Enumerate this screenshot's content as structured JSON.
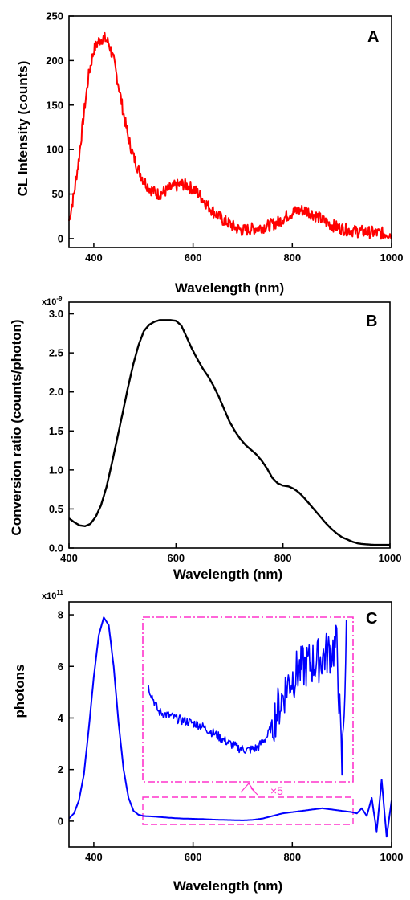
{
  "chart_data": [
    {
      "type": "line",
      "panel_label": "A",
      "xlabel": "Wavelength (nm)",
      "ylabel": "CL Intensity (counts)",
      "xlim": [
        350,
        1000
      ],
      "ylim": [
        -10,
        250
      ],
      "xticks": [
        400,
        600,
        800,
        1000
      ],
      "yticks": [
        0,
        50,
        100,
        150,
        200,
        250
      ],
      "series": [
        {
          "color": "#ff0000",
          "x": [
            350,
            360,
            370,
            380,
            390,
            400,
            410,
            420,
            430,
            440,
            450,
            460,
            470,
            480,
            490,
            500,
            510,
            520,
            530,
            540,
            550,
            560,
            570,
            580,
            590,
            600,
            610,
            620,
            630,
            640,
            650,
            660,
            670,
            680,
            690,
            700,
            710,
            720,
            730,
            740,
            750,
            760,
            770,
            780,
            790,
            800,
            810,
            820,
            830,
            840,
            850,
            860,
            870,
            880,
            890,
            900,
            910,
            920,
            930,
            940,
            950,
            960,
            970,
            980,
            990,
            1000
          ],
          "y": [
            20,
            50,
            90,
            140,
            185,
            212,
            222,
            226,
            220,
            200,
            172,
            140,
            112,
            92,
            78,
            66,
            58,
            53,
            50,
            52,
            55,
            58,
            60,
            61,
            59,
            56,
            51,
            44,
            37,
            31,
            26,
            21,
            18,
            14,
            11,
            9,
            10,
            11,
            12,
            13,
            14,
            16,
            18,
            22,
            26,
            29,
            31,
            32,
            31,
            28,
            25,
            21,
            18,
            15,
            13,
            11,
            10,
            9,
            8,
            8,
            7,
            7,
            6,
            6,
            6,
            5
          ]
        }
      ]
    },
    {
      "type": "line",
      "panel_label": "B",
      "xlabel": "Wavelength (nm)",
      "ylabel": "Conversion ratio (counts/photon)",
      "multiplier_base": "x10",
      "multiplier_exp": "-9",
      "xlim": [
        400,
        1000
      ],
      "ylim": [
        0,
        3.15
      ],
      "xticks": [
        400,
        600,
        800,
        1000
      ],
      "yticks": [
        "0.0",
        "0.5",
        "1.0",
        "1.5",
        "2.0",
        "2.5",
        "3.0"
      ],
      "series": [
        {
          "color": "#000000",
          "x": [
            400,
            410,
            420,
            430,
            440,
            450,
            460,
            470,
            480,
            490,
            500,
            510,
            520,
            530,
            540,
            550,
            560,
            570,
            580,
            590,
            600,
            610,
            620,
            630,
            640,
            650,
            660,
            670,
            680,
            690,
            700,
            710,
            720,
            730,
            740,
            750,
            760,
            770,
            780,
            790,
            800,
            810,
            820,
            830,
            840,
            850,
            860,
            870,
            880,
            890,
            900,
            910,
            920,
            930,
            940,
            950,
            960,
            970,
            980,
            990,
            1000
          ],
          "y": [
            0.38,
            0.33,
            0.29,
            0.28,
            0.31,
            0.4,
            0.55,
            0.78,
            1.08,
            1.4,
            1.72,
            2.05,
            2.35,
            2.6,
            2.78,
            2.86,
            2.9,
            2.92,
            2.92,
            2.92,
            2.91,
            2.85,
            2.7,
            2.55,
            2.42,
            2.3,
            2.2,
            2.08,
            1.94,
            1.78,
            1.62,
            1.5,
            1.4,
            1.32,
            1.26,
            1.2,
            1.12,
            1.02,
            0.9,
            0.83,
            0.8,
            0.79,
            0.76,
            0.71,
            0.64,
            0.56,
            0.48,
            0.4,
            0.32,
            0.25,
            0.19,
            0.14,
            0.11,
            0.08,
            0.06,
            0.05,
            0.045,
            0.04,
            0.04,
            0.04,
            0.04
          ]
        }
      ]
    },
    {
      "type": "line",
      "panel_label": "C",
      "xlabel": "Wavelength (nm)",
      "ylabel": "photons",
      "multiplier_base": "x10",
      "multiplier_exp": "11",
      "xlim": [
        350,
        1000
      ],
      "ylim": [
        -1,
        8.5
      ],
      "xticks": [
        400,
        600,
        800,
        1000
      ],
      "yticks": [
        0,
        2,
        4,
        6,
        8
      ],
      "inset_label": "×5",
      "series": [
        {
          "color": "#0000ff",
          "x": [
            350,
            360,
            370,
            380,
            390,
            400,
            410,
            420,
            430,
            440,
            450,
            460,
            470,
            480,
            490,
            500,
            520,
            540,
            560,
            580,
            600,
            620,
            640,
            660,
            680,
            700,
            720,
            740,
            760,
            780,
            800,
            820,
            840,
            860,
            880,
            900,
            920,
            930,
            940,
            950,
            960,
            970,
            980,
            990,
            1000
          ],
          "y": [
            0.1,
            0.3,
            0.8,
            1.8,
            3.6,
            5.6,
            7.2,
            7.9,
            7.6,
            6.0,
            3.8,
            2.0,
            0.9,
            0.4,
            0.25,
            0.2,
            0.18,
            0.15,
            0.12,
            0.1,
            0.09,
            0.08,
            0.06,
            0.05,
            0.04,
            0.03,
            0.05,
            0.1,
            0.2,
            0.3,
            0.35,
            0.4,
            0.45,
            0.5,
            0.45,
            0.4,
            0.35,
            0.3,
            0.5,
            0.2,
            0.9,
            -0.4,
            1.6,
            -0.6,
            0.8
          ]
        },
        {
          "name": "×5",
          "color": "#0000ff",
          "x": [
            510,
            530,
            550,
            570,
            590,
            610,
            630,
            650,
            670,
            690,
            710,
            730,
            750,
            770,
            790,
            810,
            830,
            850,
            870,
            890,
            900,
            910
          ],
          "y": [
            5.2,
            4.25,
            4.1,
            3.95,
            3.85,
            3.75,
            3.55,
            3.3,
            3.05,
            2.85,
            2.75,
            2.85,
            3.3,
            4.3,
            5.3,
            5.8,
            6.05,
            6.2,
            6.5,
            6.8,
            2.0,
            7.7
          ]
        }
      ]
    }
  ]
}
